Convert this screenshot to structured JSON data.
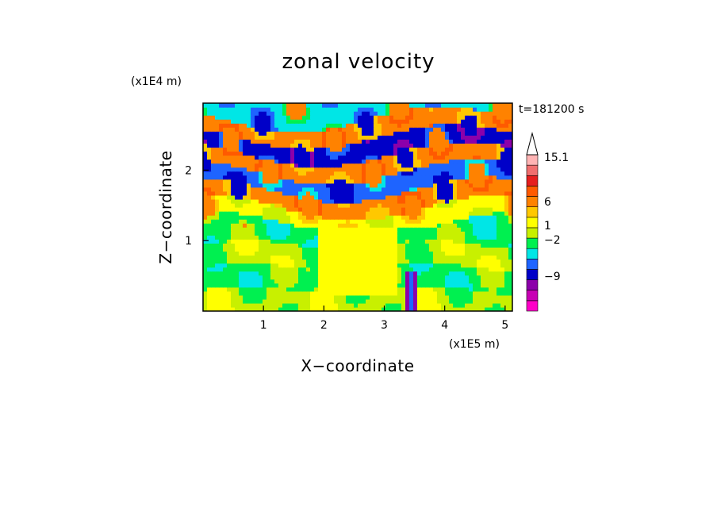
{
  "chart_data": {
    "type": "heatmap",
    "title": "zonal velocity",
    "xlabel": "X−coordinate",
    "ylabel": "Z−coordinate",
    "x_scale_note": "(x1E5 m)",
    "y_scale_note": "(x1E4 m)",
    "time_label": "t=181200 s",
    "xlim": [
      0,
      5.12
    ],
    "ylim": [
      0,
      2.95
    ],
    "x_ticks": [
      "1",
      "2",
      "3",
      "4",
      "5"
    ],
    "y_ticks": [
      "1",
      "2"
    ],
    "colorbar": {
      "labels": [
        "15.1",
        "6",
        "1",
        "−2",
        "−9"
      ],
      "extend_top": true,
      "levels_bottom_to_top": [
        {
          "color": "#ff00c8"
        },
        {
          "color": "#c800b4"
        },
        {
          "color": "#8c00aa"
        },
        {
          "color": "#0000c8"
        },
        {
          "color": "#1e64ff"
        },
        {
          "color": "#00e6e6"
        },
        {
          "color": "#00f050"
        },
        {
          "color": "#c8f000"
        },
        {
          "color": "#ffff00"
        },
        {
          "color": "#ffc800"
        },
        {
          "color": "#ff8200"
        },
        {
          "color": "#ff5a00"
        },
        {
          "color": "#e61e1e"
        },
        {
          "color": "#f06e6e"
        },
        {
          "color": "#ffb4b4"
        }
      ]
    },
    "bands": [
      {
        "z": 0.15,
        "amp": 0.6,
        "level": 7
      },
      {
        "z": 0.45,
        "amp": 0.7,
        "level": 6
      },
      {
        "z": 0.8,
        "amp": 0.9,
        "level": 7
      },
      {
        "z": 1.1,
        "amp": 1.0,
        "level": 6
      },
      {
        "z": 1.35,
        "amp": 1.2,
        "level": 8
      },
      {
        "z": 1.6,
        "amp": 1.4,
        "level": 10
      },
      {
        "z": 1.85,
        "amp": 1.5,
        "level": 4
      },
      {
        "z": 2.1,
        "amp": 1.6,
        "level": 10
      },
      {
        "z": 2.35,
        "amp": 1.7,
        "level": 3
      },
      {
        "z": 2.6,
        "amp": 1.8,
        "level": 10
      },
      {
        "z": 2.85,
        "amp": 1.6,
        "level": 5
      }
    ]
  }
}
